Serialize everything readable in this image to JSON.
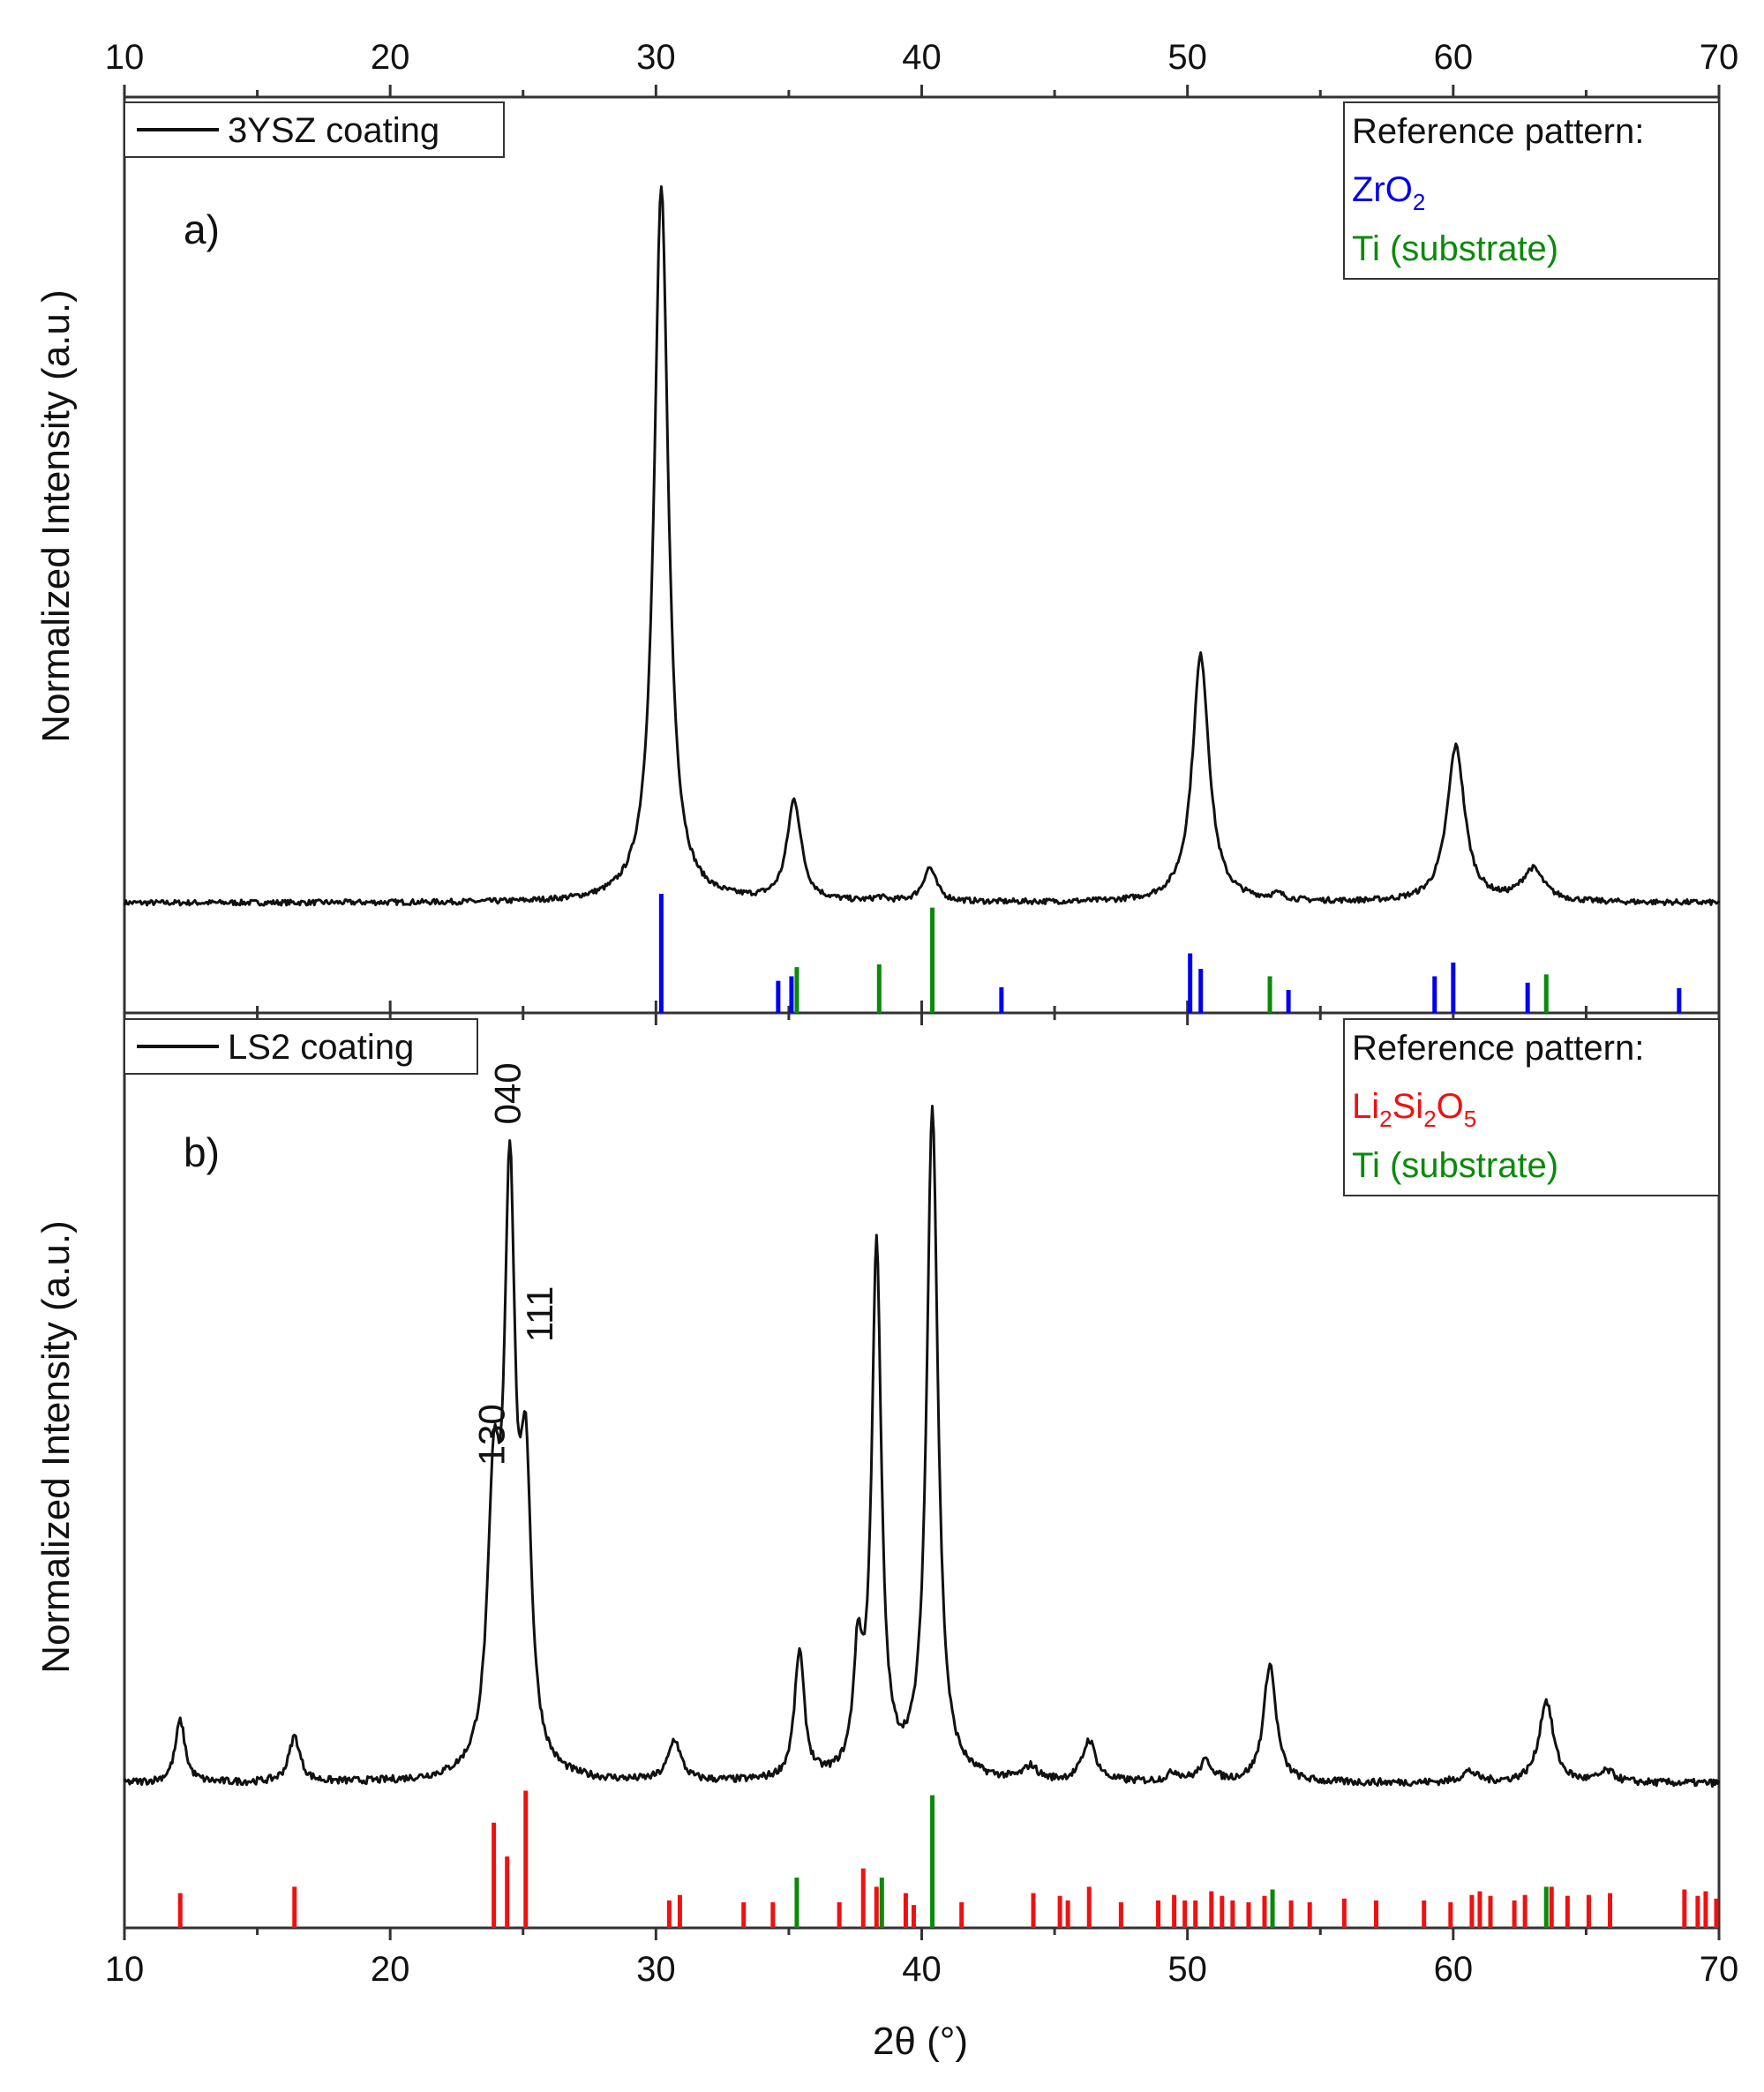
{
  "colors": {
    "trace": "#111111",
    "zro2": "#0000ee",
    "ti": "#0a8a0a",
    "li2si2o5": "#ee1111",
    "axis": "#333333"
  },
  "x_axis": {
    "label": "2θ (°)",
    "range": [
      10,
      70
    ],
    "ticks": [
      "10",
      "20",
      "30",
      "40",
      "50",
      "60",
      "70"
    ]
  },
  "chart_data": [
    {
      "type": "line",
      "panel_label": "a)",
      "ylabel": "Normalized Intensity (a.u.)",
      "xlim": [
        10,
        70
      ],
      "ylim": [
        0,
        1
      ],
      "series_legend": "3YSZ coating",
      "reference_title": "Reference pattern:",
      "reference_items": [
        {
          "base": "ZrO",
          "sub": "2",
          "color_key": "zro2"
        },
        {
          "base": "Ti (substrate)",
          "sub": "",
          "color_key": "ti"
        }
      ],
      "trace": {
        "baseline": 0.12,
        "noise": 0.003,
        "peaks": [
          [
            30.2,
            0.78,
            0.32
          ],
          [
            35.2,
            0.11,
            0.32
          ],
          [
            38.4,
            0.004,
            0.25
          ],
          [
            40.3,
            0.037,
            0.3
          ],
          [
            50.5,
            0.27,
            0.38
          ],
          [
            53.4,
            0.006,
            0.3
          ],
          [
            60.1,
            0.17,
            0.4
          ],
          [
            63.0,
            0.035,
            0.5
          ]
        ]
      },
      "reference_ticks": {
        "zro2": [
          [
            30.2,
            0.13
          ],
          [
            34.6,
            0.035
          ],
          [
            35.1,
            0.04
          ],
          [
            43.0,
            0.028
          ],
          [
            50.1,
            0.065
          ],
          [
            50.5,
            0.048
          ],
          [
            53.8,
            0.025
          ],
          [
            59.3,
            0.04
          ],
          [
            60.0,
            0.055
          ],
          [
            62.8,
            0.033
          ],
          [
            68.5,
            0.027
          ]
        ],
        "ti": [
          [
            35.3,
            0.05
          ],
          [
            38.4,
            0.053
          ],
          [
            40.4,
            0.115
          ],
          [
            53.1,
            0.04
          ],
          [
            63.5,
            0.042
          ]
        ]
      }
    },
    {
      "type": "line",
      "panel_label": "b)",
      "ylabel": "Normalized Intensity (a.u.)",
      "xlim": [
        10,
        70
      ],
      "ylim": [
        0,
        1
      ],
      "series_legend": "LS2 coating",
      "reference_title": "Reference pattern:",
      "reference_items": [
        {
          "base": "Li2Si2O5",
          "parts": [
            [
              "Li",
              "2"
            ],
            [
              "Si",
              "2"
            ],
            [
              "O",
              "5"
            ]
          ],
          "color_key": "li2si2o5"
        },
        {
          "base": "Ti (substrate)",
          "sub": "",
          "color_key": "ti"
        }
      ],
      "peak_labels": [
        {
          "text": "130",
          "x": 23.9,
          "y": 0.505
        },
        {
          "text": "040",
          "x": 24.5,
          "y": 0.878
        },
        {
          "text": "111",
          "x": 25.7,
          "y": 0.64
        }
      ],
      "trace": {
        "baseline": 0.158,
        "noise": 0.004,
        "peaks": [
          [
            12.1,
            0.068,
            0.22
          ],
          [
            16.4,
            0.05,
            0.25
          ],
          [
            23.9,
            0.28,
            0.28
          ],
          [
            24.5,
            0.61,
            0.25
          ],
          [
            25.1,
            0.3,
            0.25
          ],
          [
            30.7,
            0.045,
            0.28
          ],
          [
            35.4,
            0.14,
            0.22
          ],
          [
            37.6,
            0.12,
            0.2
          ],
          [
            38.3,
            0.575,
            0.22
          ],
          [
            40.4,
            0.735,
            0.25
          ],
          [
            44.1,
            0.015,
            0.3
          ],
          [
            46.3,
            0.045,
            0.3
          ],
          [
            49.5,
            0.01,
            0.3
          ],
          [
            50.7,
            0.022,
            0.3
          ],
          [
            53.1,
            0.13,
            0.28
          ],
          [
            60.6,
            0.012,
            0.35
          ],
          [
            63.5,
            0.09,
            0.32
          ],
          [
            65.8,
            0.012,
            0.35
          ]
        ]
      },
      "reference_ticks": {
        "li2si2o5": [
          [
            12.1,
            0.038
          ],
          [
            16.4,
            0.045
          ],
          [
            23.9,
            0.115
          ],
          [
            24.4,
            0.078
          ],
          [
            25.1,
            0.15
          ],
          [
            30.5,
            0.03
          ],
          [
            30.9,
            0.036
          ],
          [
            33.3,
            0.028
          ],
          [
            34.4,
            0.028
          ],
          [
            36.9,
            0.028
          ],
          [
            37.8,
            0.065
          ],
          [
            38.3,
            0.045
          ],
          [
            39.4,
            0.038
          ],
          [
            39.7,
            0.025
          ],
          [
            41.5,
            0.028
          ],
          [
            44.2,
            0.038
          ],
          [
            45.2,
            0.035
          ],
          [
            45.5,
            0.03
          ],
          [
            46.3,
            0.045
          ],
          [
            47.5,
            0.028
          ],
          [
            48.9,
            0.03
          ],
          [
            49.5,
            0.036
          ],
          [
            49.9,
            0.03
          ],
          [
            50.3,
            0.03
          ],
          [
            50.9,
            0.04
          ],
          [
            51.3,
            0.035
          ],
          [
            51.7,
            0.03
          ],
          [
            52.3,
            0.028
          ],
          [
            52.9,
            0.035
          ],
          [
            53.9,
            0.03
          ],
          [
            54.6,
            0.028
          ],
          [
            55.9,
            0.032
          ],
          [
            57.1,
            0.03
          ],
          [
            58.9,
            0.03
          ],
          [
            59.9,
            0.028
          ],
          [
            60.7,
            0.036
          ],
          [
            61.0,
            0.04
          ],
          [
            61.4,
            0.035
          ],
          [
            62.3,
            0.03
          ],
          [
            62.7,
            0.036
          ],
          [
            63.7,
            0.045
          ],
          [
            64.3,
            0.035
          ],
          [
            65.1,
            0.036
          ],
          [
            65.9,
            0.038
          ],
          [
            68.7,
            0.042
          ],
          [
            69.2,
            0.035
          ],
          [
            69.5,
            0.04
          ],
          [
            69.9,
            0.032
          ]
        ],
        "ti": [
          [
            35.3,
            0.055
          ],
          [
            38.5,
            0.055
          ],
          [
            40.4,
            0.145
          ],
          [
            53.2,
            0.042
          ],
          [
            63.5,
            0.045
          ]
        ]
      }
    }
  ]
}
